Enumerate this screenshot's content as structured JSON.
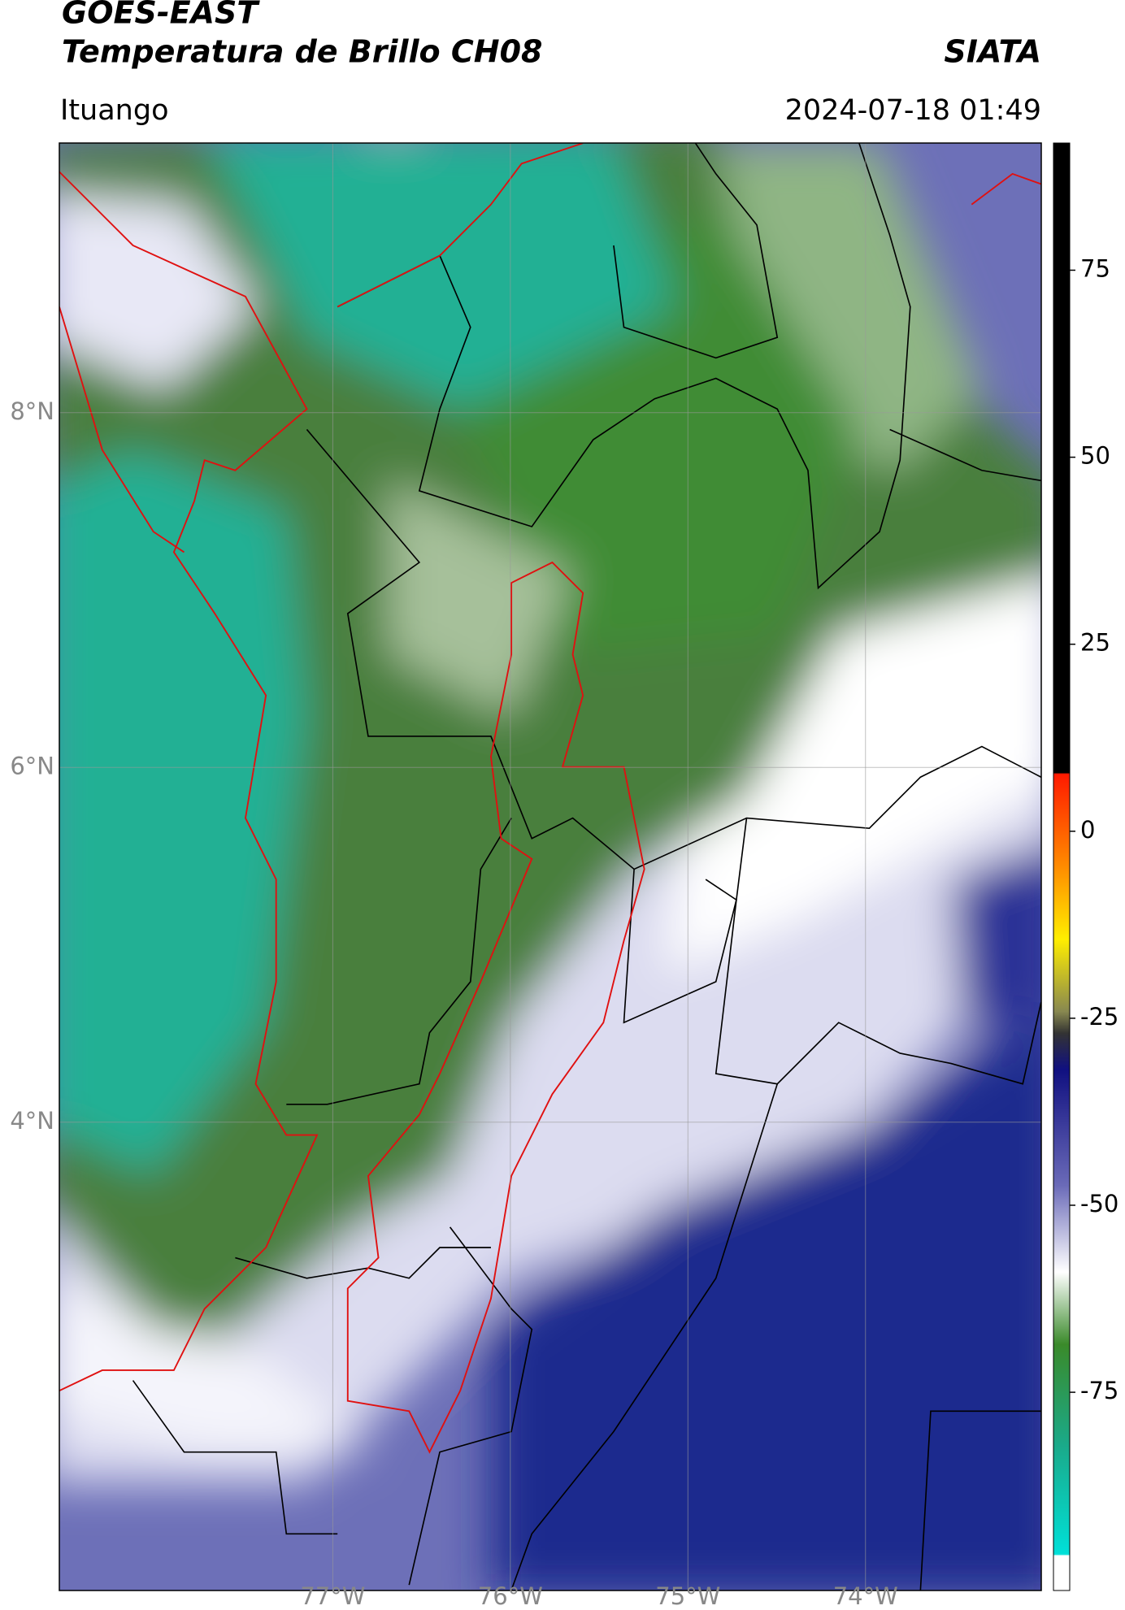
{
  "header": {
    "title": "GOES-EAST",
    "subtitle": "Temperatura de Brillo CH08",
    "source": "SIATA",
    "location": "Ituango",
    "datetime": "2024-07-18 01:49"
  },
  "map": {
    "xlim": [
      -78.54,
      -73.01
    ],
    "ylim": [
      1.36,
      9.52
    ],
    "xticks": [
      {
        "value": -77,
        "label": "77°W"
      },
      {
        "value": -76,
        "label": "76°W"
      },
      {
        "value": -75,
        "label": "75°W"
      },
      {
        "value": -74,
        "label": "74°W"
      }
    ],
    "yticks": [
      {
        "value": 8,
        "label": "8°N"
      },
      {
        "value": 6,
        "label": "6°N"
      },
      {
        "value": 4,
        "label": "4°N"
      }
    ],
    "grid": true
  },
  "colorbar": {
    "lim": [
      -101.5,
      92
    ],
    "ticks": [
      75,
      50,
      25,
      0,
      -25,
      -50,
      -75
    ]
  }
}
